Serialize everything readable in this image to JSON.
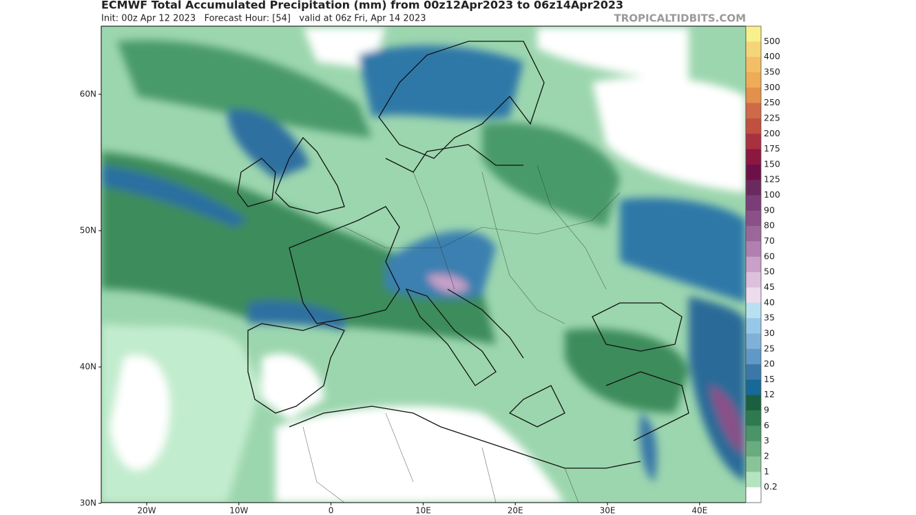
{
  "header": {
    "title": "ECMWF Total Accumulated Precipitation (mm) from 00z12Apr2023 to 06z14Apr2023",
    "subtitle": "Init: 00z Apr 12 2023   Forecast Hour: [54]   valid at 06z Fri, Apr 14 2023",
    "watermark": "TROPICALTIDBITS.COM"
  },
  "map": {
    "lat_labels": [
      "60N",
      "50N",
      "40N",
      "30N"
    ],
    "lon_labels": [
      "20W",
      "10W",
      "0",
      "10E",
      "20E",
      "30E",
      "40E"
    ]
  },
  "colorbar": {
    "labels": [
      "500",
      "400",
      "350",
      "300",
      "250",
      "225",
      "200",
      "175",
      "150",
      "125",
      "100",
      "90",
      "80",
      "70",
      "60",
      "50",
      "45",
      "40",
      "35",
      "30",
      "25",
      "20",
      "15",
      "12",
      "9",
      "6",
      "3",
      "2",
      "1",
      "0.2"
    ],
    "colors": [
      "#f8f08a",
      "#f5d57a",
      "#f2bf66",
      "#eeab58",
      "#e2904c",
      "#cf6a48",
      "#c05040",
      "#a83040",
      "#8a1840",
      "#6e1048",
      "#6a2a60",
      "#7a3d78",
      "#8a5088",
      "#9a6898",
      "#b080b0",
      "#c8a0c8",
      "#dcc0dc",
      "#ecdcec",
      "#b8e0f0",
      "#98c8e8",
      "#80b0d8",
      "#6098c8",
      "#3a78a8",
      "#186898",
      "#1a6040",
      "#2e7a50",
      "#4a9468",
      "#68ac80",
      "#88c498",
      "#b4e4c0",
      "#ffffff"
    ]
  }
}
